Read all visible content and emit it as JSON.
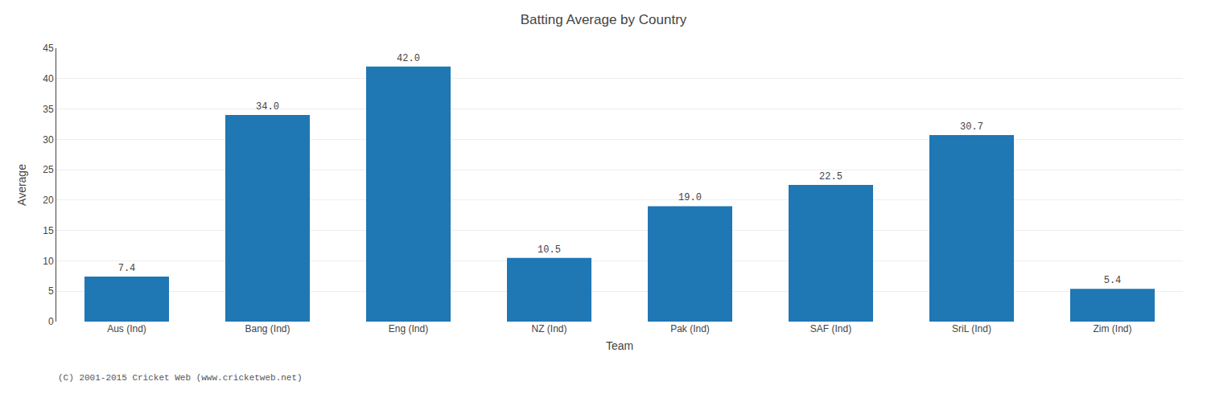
{
  "chart_data": {
    "type": "bar",
    "title": "Batting Average by Country",
    "xlabel": "Team",
    "ylabel": "Average",
    "categories": [
      "Aus (Ind)",
      "Bang (Ind)",
      "Eng (Ind)",
      "NZ (Ind)",
      "Pak (Ind)",
      "SAF (Ind)",
      "SriL (Ind)",
      "Zim (Ind)"
    ],
    "values": [
      7.4,
      34.0,
      42.0,
      10.5,
      19.0,
      22.5,
      30.7,
      5.4
    ],
    "value_labels": [
      "7.4",
      "34.0",
      "42.0",
      "10.5",
      "19.0",
      "22.5",
      "30.7",
      "5.4"
    ],
    "data_labels": true,
    "ylim": [
      0,
      45
    ],
    "yticks": [
      0,
      5,
      10,
      15,
      20,
      25,
      30,
      35,
      40,
      45
    ],
    "grid": true,
    "annotations": [
      "(C) 2001-2015 Cricket Web (www.cricketweb.net)"
    ]
  }
}
